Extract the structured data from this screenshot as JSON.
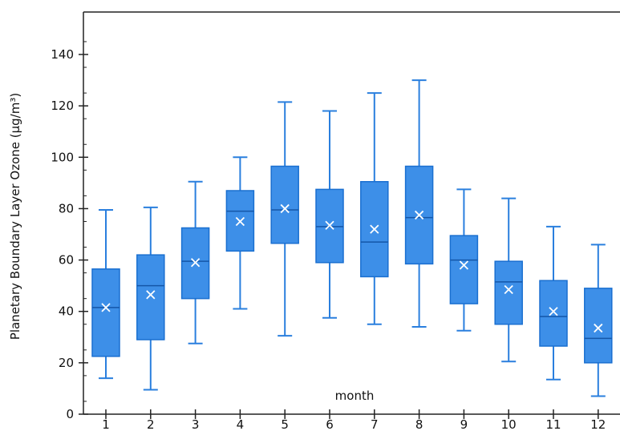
{
  "chart_data": {
    "type": "box",
    "xlabel": "month",
    "ylabel": "Planetary Boundary Layer Ozone (μg/m³)",
    "ylim": [
      0,
      155
    ],
    "yticks": [
      0,
      20,
      40,
      60,
      80,
      100,
      120,
      140
    ],
    "categories": [
      "1",
      "2",
      "3",
      "4",
      "5",
      "6",
      "7",
      "8",
      "9",
      "10",
      "11",
      "12"
    ],
    "boxes": [
      {
        "min": 14,
        "q1": 22.5,
        "median": 41.5,
        "q3": 56.5,
        "max": 79.5,
        "mean": 41.5
      },
      {
        "min": 9.5,
        "q1": 29,
        "median": 50,
        "q3": 62,
        "max": 80.5,
        "mean": 46.5
      },
      {
        "min": 27.5,
        "q1": 45,
        "median": 59.5,
        "q3": 72.5,
        "max": 90.5,
        "mean": 59
      },
      {
        "min": 41,
        "q1": 63.5,
        "median": 79,
        "q3": 87,
        "max": 100,
        "mean": 75
      },
      {
        "min": 30.5,
        "q1": 66.5,
        "median": 79.5,
        "q3": 96.5,
        "max": 121.5,
        "mean": 80
      },
      {
        "min": 37.5,
        "q1": 59,
        "median": 73,
        "q3": 87.5,
        "max": 118,
        "mean": 73.5
      },
      {
        "min": 35,
        "q1": 53.5,
        "median": 67,
        "q3": 90.5,
        "max": 125,
        "mean": 72
      },
      {
        "min": 34,
        "q1": 58.5,
        "median": 76.5,
        "q3": 96.5,
        "max": 130,
        "mean": 77.5
      },
      {
        "min": 32.5,
        "q1": 43,
        "median": 60,
        "q3": 69.5,
        "max": 87.5,
        "mean": 58
      },
      {
        "min": 20.5,
        "q1": 35,
        "median": 51.5,
        "q3": 59.5,
        "max": 84,
        "mean": 48.5
      },
      {
        "min": 13.5,
        "q1": 26.5,
        "median": 38,
        "q3": 52,
        "max": 73,
        "mean": 40
      },
      {
        "min": 7,
        "q1": 20,
        "median": 29.5,
        "q3": 49,
        "max": 66,
        "mean": 33.5
      }
    ],
    "colors": {
      "box_fill": "#3d8fe8",
      "box_stroke": "#1a6fd0",
      "line": "#2a7fde",
      "mean_marker": "#ffffff"
    },
    "grid": false,
    "legend": "none"
  }
}
